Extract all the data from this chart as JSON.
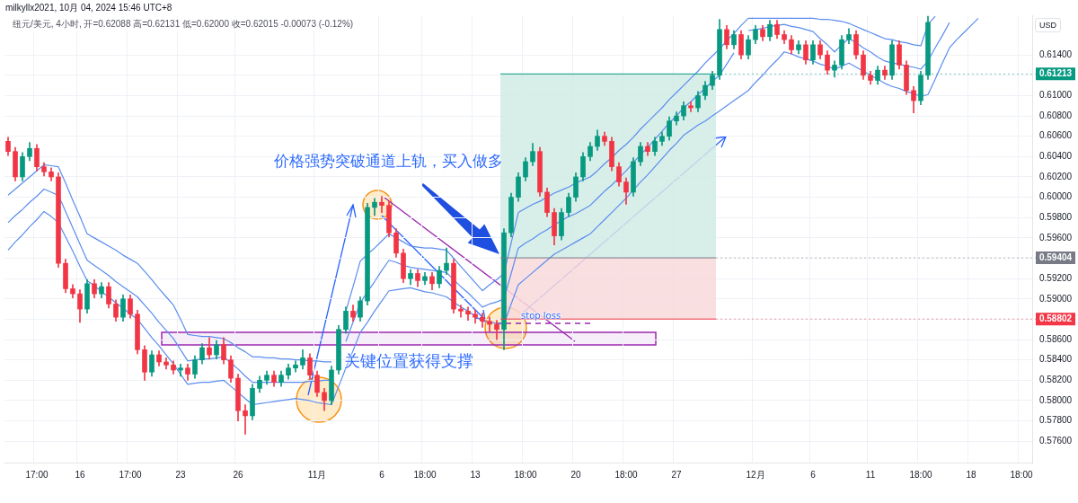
{
  "chart_data": {
    "type": "candlestick",
    "title": "milkyllx2021, 10月 04, 2024 15:46 UTC+8",
    "subtitle": "纽元/美元, 4小时, 开=0.62088 高=0.62131 低=0.62000 收=0.62015 -0.00073 (-0.12%)",
    "ylabel": "USD",
    "annotations": [
      "价格强势突破通道上轨，买入做多",
      "关键位置获得支撑",
      "stop loss"
    ],
    "categories": [
      null,
      null,
      null,
      null,
      "17:00",
      null,
      null,
      null,
      null,
      null,
      "16",
      null,
      null,
      null,
      null,
      null,
      null,
      "17:00",
      null,
      null,
      null,
      null,
      null,
      null,
      "23",
      null,
      null,
      null,
      null,
      null,
      null,
      null,
      "26",
      null,
      null,
      null,
      null,
      null,
      null,
      null,
      null,
      null,
      null,
      "11月",
      null,
      null,
      null,
      null,
      null,
      null,
      null,
      null,
      "6",
      null,
      null,
      null,
      null,
      null,
      "18:00",
      null,
      null,
      null,
      null,
      null,
      null,
      "13",
      null,
      null,
      null,
      null,
      null,
      null,
      "18:00",
      null,
      null,
      null,
      null,
      null,
      null,
      "20",
      null,
      null,
      null,
      null,
      null,
      null,
      "18:00",
      null,
      null,
      null,
      null,
      null,
      null,
      "27",
      null,
      null,
      null,
      null,
      null,
      null,
      null,
      null,
      null,
      null,
      "12月",
      null,
      null,
      null,
      null,
      null,
      null,
      null,
      "6",
      null,
      null,
      null,
      null,
      null,
      null,
      null,
      "11",
      null,
      null,
      null,
      null,
      null,
      null,
      "18:00",
      null,
      null,
      null,
      null,
      null,
      null,
      "18",
      null,
      null,
      null,
      null,
      null,
      null,
      "18:00",
      null
    ],
    "ohlc": [
      [
        0.6055,
        0.6059,
        0.6041,
        0.6045
      ],
      [
        0.6045,
        0.6049,
        0.6016,
        0.602
      ],
      [
        0.602,
        0.6044,
        0.6016,
        0.604
      ],
      [
        0.604,
        0.6054,
        0.6036,
        0.6048
      ],
      [
        0.6048,
        0.6052,
        0.6026,
        0.603
      ],
      [
        0.603,
        0.6034,
        0.6021,
        0.6025
      ],
      [
        0.6025,
        0.6029,
        0.6016,
        0.602
      ],
      [
        0.602,
        0.6024,
        0.5931,
        0.5935
      ],
      [
        0.5935,
        0.5939,
        0.5906,
        0.591
      ],
      [
        0.591,
        0.5914,
        0.5901,
        0.5905
      ],
      [
        0.5905,
        0.5909,
        0.5877,
        0.589
      ],
      [
        0.589,
        0.5919,
        0.5886,
        0.5915
      ],
      [
        0.5915,
        0.5919,
        0.5901,
        0.5905
      ],
      [
        0.5905,
        0.5916,
        0.5901,
        0.5912
      ],
      [
        0.5912,
        0.5916,
        0.5891,
        0.5895
      ],
      [
        0.5895,
        0.5899,
        0.5878,
        0.5882
      ],
      [
        0.5882,
        0.5904,
        0.5878,
        0.59
      ],
      [
        0.59,
        0.5904,
        0.5881,
        0.5885
      ],
      [
        0.5885,
        0.5889,
        0.5846,
        0.585
      ],
      [
        0.585,
        0.5854,
        0.582,
        0.5828
      ],
      [
        0.5828,
        0.5849,
        0.5824,
        0.5845
      ],
      [
        0.5845,
        0.5849,
        0.5834,
        0.5838
      ],
      [
        0.5838,
        0.5842,
        0.5831,
        0.5835
      ],
      [
        0.5835,
        0.5839,
        0.5826,
        0.583
      ],
      [
        0.583,
        0.5836,
        0.5824,
        0.5832
      ],
      [
        0.5832,
        0.5836,
        0.582,
        0.5826
      ],
      [
        0.5826,
        0.5844,
        0.5822,
        0.584
      ],
      [
        0.584,
        0.5856,
        0.5836,
        0.5852
      ],
      [
        0.5852,
        0.5862,
        0.5841,
        0.5845
      ],
      [
        0.5845,
        0.5859,
        0.5841,
        0.5855
      ],
      [
        0.5855,
        0.5862,
        0.5836,
        0.584
      ],
      [
        0.584,
        0.5844,
        0.5818,
        0.5822
      ],
      [
        0.5822,
        0.5826,
        0.578,
        0.579
      ],
      [
        0.579,
        0.5796,
        0.5767,
        0.5785
      ],
      [
        0.5785,
        0.5816,
        0.5781,
        0.5812
      ],
      [
        0.5812,
        0.5824,
        0.5808,
        0.582
      ],
      [
        0.582,
        0.5829,
        0.5816,
        0.5825
      ],
      [
        0.5825,
        0.5829,
        0.5814,
        0.5818
      ],
      [
        0.5818,
        0.5829,
        0.5814,
        0.5825
      ],
      [
        0.5825,
        0.5836,
        0.5821,
        0.5832
      ],
      [
        0.5832,
        0.5839,
        0.5828,
        0.5835
      ],
      [
        0.5835,
        0.585,
        0.5831,
        0.5842
      ],
      [
        0.5842,
        0.5846,
        0.5821,
        0.5825
      ],
      [
        0.5825,
        0.5829,
        0.5804,
        0.5808
      ],
      [
        0.5808,
        0.5812,
        0.579,
        0.58
      ],
      [
        0.58,
        0.5834,
        0.5796,
        0.583
      ],
      [
        0.583,
        0.5874,
        0.5826,
        0.587
      ],
      [
        0.587,
        0.5892,
        0.5866,
        0.5888
      ],
      [
        0.5888,
        0.5894,
        0.5878,
        0.5882
      ],
      [
        0.5882,
        0.5902,
        0.5878,
        0.5898
      ],
      [
        0.5898,
        0.5994,
        0.5894,
        0.599
      ],
      [
        0.599,
        0.5999,
        0.5982,
        0.5995
      ],
      [
        0.5995,
        0.6001,
        0.5985,
        0.5992
      ],
      [
        0.5992,
        0.5996,
        0.5961,
        0.5965
      ],
      [
        0.5965,
        0.5969,
        0.5941,
        0.5945
      ],
      [
        0.5945,
        0.5949,
        0.5916,
        0.592
      ],
      [
        0.592,
        0.5929,
        0.5914,
        0.5925
      ],
      [
        0.5925,
        0.5929,
        0.5912,
        0.5918
      ],
      [
        0.5918,
        0.5926,
        0.5914,
        0.5922
      ],
      [
        0.5922,
        0.5926,
        0.5909,
        0.5915
      ],
      [
        0.5915,
        0.5932,
        0.5911,
        0.5928
      ],
      [
        0.5928,
        0.595,
        0.5924,
        0.5935
      ],
      [
        0.5935,
        0.5939,
        0.5886,
        0.589
      ],
      [
        0.589,
        0.5894,
        0.5882,
        0.5888
      ],
      [
        0.5888,
        0.5892,
        0.5879,
        0.5885
      ],
      [
        0.5885,
        0.5889,
        0.5876,
        0.5882
      ],
      [
        0.5882,
        0.5886,
        0.5872,
        0.5878
      ],
      [
        0.5878,
        0.5882,
        0.5868,
        0.5875
      ],
      [
        0.5875,
        0.5879,
        0.586,
        0.587
      ],
      [
        0.587,
        0.5969,
        0.585,
        0.5965
      ],
      [
        0.5965,
        0.6004,
        0.5961,
        0.6
      ],
      [
        0.6,
        0.6024,
        0.5996,
        0.602
      ],
      [
        0.602,
        0.6039,
        0.6016,
        0.6035
      ],
      [
        0.6035,
        0.6053,
        0.6031,
        0.6045
      ],
      [
        0.6045,
        0.6049,
        0.6001,
        0.6005
      ],
      [
        0.6005,
        0.6009,
        0.5981,
        0.5985
      ],
      [
        0.5985,
        0.5989,
        0.5953,
        0.5962
      ],
      [
        0.5962,
        0.5989,
        0.5958,
        0.5985
      ],
      [
        0.5985,
        0.6004,
        0.5981,
        0.6
      ],
      [
        0.6,
        0.6024,
        0.5996,
        0.602
      ],
      [
        0.602,
        0.6044,
        0.6016,
        0.604
      ],
      [
        0.604,
        0.6054,
        0.6036,
        0.605
      ],
      [
        0.605,
        0.6066,
        0.6046,
        0.606
      ],
      [
        0.606,
        0.6064,
        0.6051,
        0.6055
      ],
      [
        0.6055,
        0.6059,
        0.6026,
        0.603
      ],
      [
        0.603,
        0.6034,
        0.6011,
        0.6015
      ],
      [
        0.6015,
        0.6019,
        0.5993,
        0.6005
      ],
      [
        0.6005,
        0.6039,
        0.6001,
        0.6035
      ],
      [
        0.6035,
        0.6054,
        0.6031,
        0.605
      ],
      [
        0.605,
        0.6054,
        0.6041,
        0.6045
      ],
      [
        0.6045,
        0.6059,
        0.6041,
        0.6055
      ],
      [
        0.6055,
        0.6064,
        0.6051,
        0.606
      ],
      [
        0.606,
        0.6079,
        0.6056,
        0.6075
      ],
      [
        0.6075,
        0.6084,
        0.6071,
        0.608
      ],
      [
        0.608,
        0.6094,
        0.6076,
        0.609
      ],
      [
        0.609,
        0.6094,
        0.6084,
        0.6088
      ],
      [
        0.6088,
        0.6104,
        0.6084,
        0.61
      ],
      [
        0.61,
        0.6114,
        0.6096,
        0.611
      ],
      [
        0.611,
        0.6124,
        0.6106,
        0.612
      ],
      [
        0.612,
        0.6175,
        0.6116,
        0.6165
      ],
      [
        0.6165,
        0.6169,
        0.6146,
        0.615
      ],
      [
        0.615,
        0.6164,
        0.6146,
        0.616
      ],
      [
        0.616,
        0.6164,
        0.6136,
        0.614
      ],
      [
        0.614,
        0.6159,
        0.6136,
        0.6155
      ],
      [
        0.6155,
        0.6169,
        0.6151,
        0.6165
      ],
      [
        0.6165,
        0.6169,
        0.6154,
        0.6158
      ],
      [
        0.6158,
        0.6174,
        0.6154,
        0.617
      ],
      [
        0.617,
        0.6174,
        0.6156,
        0.616
      ],
      [
        0.616,
        0.6164,
        0.6151,
        0.6155
      ],
      [
        0.6155,
        0.6159,
        0.6141,
        0.6145
      ],
      [
        0.6145,
        0.6154,
        0.6141,
        0.615
      ],
      [
        0.615,
        0.6154,
        0.6131,
        0.6135
      ],
      [
        0.6135,
        0.6154,
        0.6131,
        0.615
      ],
      [
        0.615,
        0.6154,
        0.6136,
        0.614
      ],
      [
        0.614,
        0.6144,
        0.6121,
        0.6125
      ],
      [
        0.6125,
        0.6134,
        0.6118,
        0.613
      ],
      [
        0.613,
        0.6159,
        0.6126,
        0.6155
      ],
      [
        0.6155,
        0.6166,
        0.6151,
        0.616
      ],
      [
        0.616,
        0.6164,
        0.6136,
        0.614
      ],
      [
        0.614,
        0.6144,
        0.6116,
        0.612
      ],
      [
        0.612,
        0.6124,
        0.6111,
        0.6115
      ],
      [
        0.6115,
        0.6129,
        0.6111,
        0.6125
      ],
      [
        0.6125,
        0.6129,
        0.6116,
        0.612
      ],
      [
        0.612,
        0.6154,
        0.6116,
        0.615
      ],
      [
        0.615,
        0.6154,
        0.6126,
        0.613
      ],
      [
        0.613,
        0.6134,
        0.6101,
        0.6105
      ],
      [
        0.6105,
        0.6109,
        0.6083,
        0.6095
      ],
      [
        0.6095,
        0.6124,
        0.6091,
        0.612
      ],
      [
        0.612,
        0.6178,
        0.6116,
        0.6172
      ],
      null,
      null,
      null,
      null,
      null,
      null,
      null,
      null,
      null,
      null,
      null,
      null,
      null,
      null
    ],
    "colors": [
      "#f23645",
      "#f23645",
      "#089981",
      "#089981",
      "#f23645",
      "#f23645",
      "#f23645",
      "#f23645",
      "#f23645",
      "#f23645",
      "#f23645",
      "#089981",
      "#f23645",
      "#089981",
      "#f23645",
      "#f23645",
      "#089981",
      "#f23645",
      "#f23645",
      "#f23645",
      "#089981",
      "#f23645",
      "#f23645",
      "#f23645",
      "#089981",
      "#f23645",
      "#089981",
      "#089981",
      "#f23645",
      "#089981",
      "#f23645",
      "#f23645",
      "#f23645",
      "#f23645",
      "#089981",
      "#089981",
      "#089981",
      "#f23645",
      "#089981",
      "#089981",
      "#089981",
      "#089981",
      "#f23645",
      "#f23645",
      "#f23645",
      "#089981",
      "#089981",
      "#089981",
      "#f23645",
      "#089981",
      "#089981",
      "#089981",
      "#f23645",
      "#f23645",
      "#f23645",
      "#f23645",
      "#089981",
      "#f23645",
      "#089981",
      "#f23645",
      "#089981",
      "#089981",
      "#f23645",
      "#f23645",
      "#f23645",
      "#f23645",
      "#f23645",
      "#f23645",
      "#f23645",
      "#089981",
      "#089981",
      "#089981",
      "#089981",
      "#089981",
      "#f23645",
      "#f23645",
      "#f23645",
      "#089981",
      "#089981",
      "#089981",
      "#089981",
      "#089981",
      "#089981",
      "#f23645",
      "#f23645",
      "#f23645",
      "#f23645",
      "#089981",
      "#089981",
      "#f23645",
      "#089981",
      "#089981",
      "#089981",
      "#089981",
      "#089981",
      "#f23645",
      "#089981",
      "#089981",
      "#089981",
      "#089981",
      "#f23645",
      "#089981",
      "#f23645",
      "#089981",
      "#089981",
      "#f23645",
      "#089981",
      "#f23645",
      "#f23645",
      "#f23645",
      "#089981",
      "#f23645",
      "#089981",
      "#f23645",
      "#f23645",
      "#089981",
      "#089981",
      "#089981",
      "#f23645",
      "#f23645",
      "#f23645",
      "#089981",
      "#f23645",
      "#089981",
      "#f23645",
      "#f23645",
      "#f23645",
      "#089981",
      "#089981",
      null,
      null,
      null,
      null,
      null,
      null,
      null,
      null,
      null,
      null,
      null,
      null,
      null,
      null
    ],
    "series": [
      {
        "type": "line",
        "color": "#5b8def",
        "values": [
          0.6002,
          0.6008,
          0.6014,
          0.602,
          0.6026,
          0.6032,
          0.6031,
          0.603,
          0.6014,
          0.5997,
          0.5981,
          0.5964,
          0.596,
          0.5956,
          0.5952,
          0.5948,
          0.5943,
          0.5939,
          0.5935,
          0.5927,
          0.5919,
          0.591,
          0.5902,
          0.5894,
          0.588,
          0.5865,
          0.5864,
          0.5863,
          0.5863,
          0.5862,
          0.5861,
          0.5857,
          0.5852,
          0.5848,
          0.5843,
          0.5843,
          0.5842,
          0.5842,
          0.5841,
          0.5841,
          0.584,
          0.584,
          0.5839,
          0.5839,
          0.5838,
          0.5838,
          null,
          0.5888,
          0.5912,
          0.5937,
          0.5944,
          0.595,
          0.5957,
          0.5964,
          0.596,
          0.5956,
          0.5952,
          0.5951,
          0.595,
          0.595,
          0.5949,
          0.5948,
          0.594,
          0.5932,
          0.5924,
          0.5916,
          0.5908,
          0.5914,
          0.5919,
          0.5925,
          0.5955,
          0.5985,
          0.5989,
          0.5993,
          0.5996,
          0.6,
          0.6004,
          0.6007,
          0.601,
          0.6014,
          0.6017,
          0.602,
          0.6026,
          0.6033,
          0.6039,
          0.6046,
          0.6052,
          0.6059,
          0.6067,
          0.6074,
          0.6081,
          0.6088,
          0.6096,
          0.6103,
          0.611,
          0.6117,
          0.6124,
          0.6132,
          0.6139,
          0.6146,
          0.6154,
          0.6161,
          0.6169,
          0.6176,
          0.6176,
          0.6176,
          0.6176,
          0.6176,
          0.6176,
          0.6176,
          0.6176,
          0.6176,
          0.6176,
          0.6175,
          0.6175,
          0.6174,
          0.6173,
          0.6171,
          0.6168,
          0.6165,
          0.6162,
          0.6159,
          0.6156,
          0.6155,
          0.6153,
          0.6152,
          0.615,
          0.6149,
          0.617,
          0.6178,
          null,
          null,
          null,
          null,
          null,
          null,
          null,
          null,
          null,
          null,
          null,
          null,
          null
        ]
      },
      {
        "type": "line",
        "color": "#5b8def",
        "values": [
          0.5975,
          0.5982,
          0.5988,
          0.5995,
          0.6001,
          0.6008,
          0.6005,
          0.6002,
          0.5986,
          0.597,
          0.5954,
          0.5938,
          0.5933,
          0.5928,
          0.5923,
          0.5917,
          0.5912,
          0.5907,
          0.5902,
          0.5894,
          0.5886,
          0.5877,
          0.5869,
          0.5861,
          0.585,
          0.5839,
          0.584,
          0.5841,
          0.5841,
          0.5842,
          0.5843,
          0.5837,
          0.5831,
          0.5824,
          0.5818,
          0.5818,
          0.5818,
          0.5818,
          0.5818,
          0.5818,
          0.5818,
          0.5818,
          0.5819,
          0.5819,
          0.582,
          0.582,
          null,
          0.5858,
          0.5877,
          0.5896,
          0.5907,
          0.5917,
          0.5928,
          0.5938,
          0.5936,
          0.5933,
          0.5931,
          0.593,
          0.5929,
          0.5928,
          0.5927,
          0.5926,
          0.5919,
          0.5912,
          0.5906,
          0.5899,
          0.5892,
          0.5895,
          0.5897,
          0.59,
          0.5925,
          0.595,
          0.5955,
          0.5959,
          0.5964,
          0.5968,
          0.5973,
          0.5977,
          0.5981,
          0.5984,
          0.5988,
          0.5992,
          0.5999,
          0.6006,
          0.6012,
          0.6019,
          0.6026,
          0.6034,
          0.6042,
          0.6049,
          0.6057,
          0.6065,
          0.6073,
          0.608,
          0.6088,
          0.6094,
          0.6101,
          0.6107,
          0.6114,
          0.612,
          0.6131,
          0.6142,
          null,
          0.6164,
          0.6165,
          0.6166,
          0.6168,
          0.6169,
          0.617,
          0.6168,
          0.6167,
          0.6165,
          0.6163,
          0.6156,
          0.615,
          0.6143,
          0.615,
          0.6156,
          0.6152,
          0.6147,
          0.6143,
          0.6138,
          0.6134,
          0.6132,
          0.6131,
          0.6129,
          0.6128,
          0.6126,
          0.6134,
          0.6147,
          0.6159,
          0.6172,
          null,
          null,
          null,
          null,
          null,
          null,
          null,
          null,
          null,
          null,
          null
        ]
      },
      {
        "type": "line",
        "color": "#5b8def",
        "values": [
          0.5948,
          0.5956,
          0.5963,
          0.5971,
          0.5978,
          0.5986,
          0.5981,
          0.5975,
          0.5961,
          0.5947,
          0.5932,
          0.5918,
          0.5913,
          0.5907,
          0.5902,
          0.5896,
          0.5891,
          0.5885,
          0.588,
          0.5871,
          0.5862,
          0.5854,
          0.5845,
          0.5836,
          0.5826,
          0.5816,
          0.5817,
          0.5818,
          0.5818,
          0.5819,
          0.582,
          0.5814,
          0.5808,
          0.5802,
          0.5796,
          0.5797,
          0.5798,
          0.5799,
          0.58,
          0.5801,
          0.5802,
          0.5801,
          0.58,
          0.5798,
          0.5797,
          0.5796,
          0.5814,
          0.5832,
          0.5849,
          0.5867,
          0.5877,
          0.5888,
          0.5898,
          0.5908,
          0.5909,
          0.591,
          0.5911,
          0.5909,
          0.5907,
          0.5906,
          0.5904,
          0.5902,
          0.5897,
          0.5892,
          0.5888,
          0.5883,
          0.5878,
          0.5877,
          0.5876,
          0.5875,
          0.5895,
          0.5914,
          0.592,
          0.5926,
          0.5932,
          0.5938,
          0.5944,
          0.5948,
          0.5952,
          0.5956,
          0.596,
          0.5964,
          0.5971,
          0.5978,
          0.5985,
          0.5992,
          0.5999,
          0.6007,
          0.6015,
          0.6022,
          0.603,
          0.6038,
          0.6046,
          0.6053,
          0.6061,
          0.6066,
          0.6071,
          0.6075,
          0.608,
          0.6085,
          0.609,
          0.6095,
          0.61,
          0.6105,
          0.6113,
          0.612,
          0.6128,
          0.6135,
          0.6143,
          0.6141,
          0.6138,
          0.6136,
          0.6134,
          0.6131,
          0.6129,
          0.6126,
          0.6129,
          0.6132,
          0.6128,
          0.6124,
          0.612,
          0.6116,
          0.6112,
          0.6109,
          0.6107,
          0.6104,
          0.6102,
          0.6099,
          0.6101,
          0.6116,
          0.6132,
          0.6147,
          0.6155,
          0.6162,
          0.6169,
          0.6176,
          null,
          null,
          null,
          null,
          null,
          null,
          null
        ]
      }
    ],
    "ylim": [
      0.5739,
      0.6179
    ],
    "yticks": [
      {
        "value": 0.576,
        "label": "0.57600"
      },
      {
        "value": 0.578,
        "label": "0.57800"
      },
      {
        "value": 0.58,
        "label": "0.58000"
      },
      {
        "value": 0.582,
        "label": "0.58200"
      },
      {
        "value": 0.584,
        "label": "0.58400"
      },
      {
        "value": 0.586,
        "label": "0.58600"
      },
      {
        "value": 0.588,
        "label": null
      },
      {
        "value": 0.59,
        "label": "0.59000"
      },
      {
        "value": 0.592,
        "label": "0.59200"
      },
      {
        "value": 0.594,
        "label": null
      },
      {
        "value": 0.596,
        "label": "0.59600"
      },
      {
        "value": 0.598,
        "label": "0.59800"
      },
      {
        "value": 0.6,
        "label": "0.60000"
      },
      {
        "value": 0.602,
        "label": "0.60200"
      },
      {
        "value": 0.604,
        "label": "0.60400"
      },
      {
        "value": 0.606,
        "label": "0.60600"
      },
      {
        "value": 0.608,
        "label": "0.60800"
      },
      {
        "value": 0.61,
        "label": "0.61000"
      },
      {
        "value": 0.612,
        "label": null
      },
      {
        "value": 0.614,
        "label": "0.61400"
      }
    ],
    "bands": [
      {
        "axis": "y",
        "from": 0.59404,
        "to": 0.61213,
        "color": "#d1ebe5"
      },
      {
        "axis": "y",
        "from": 0.58802,
        "to": 0.59404,
        "color": "#f9d9dc"
      }
    ],
    "ref_lines": [
      {
        "axis": "y",
        "value": 0.61213,
        "label": "0.61213",
        "color": "#089981"
      },
      {
        "axis": "y",
        "value": 0.59404,
        "label": "0.59404",
        "color": "#787b86"
      },
      {
        "axis": "y",
        "value": 0.58802,
        "label": "0.58802",
        "color": "#f23645"
      }
    ],
    "grid": true
  }
}
